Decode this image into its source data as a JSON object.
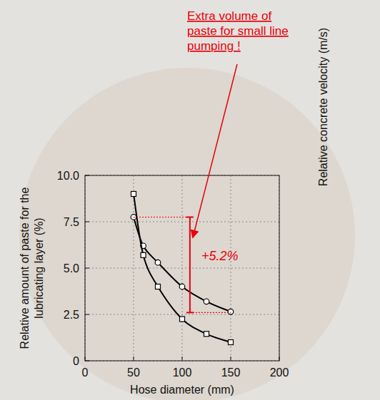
{
  "chart_data": {
    "type": "line",
    "x_label": "Hose diameter (mm)",
    "y_label_lines": [
      "Relative amount of paste for the",
      "lubricating layer (%)"
    ],
    "y2_label": "Relative concrete velocity (m/s)",
    "x": [
      50,
      60,
      75,
      100,
      125,
      150
    ],
    "series": [
      {
        "color": "#000000",
        "marker": "circle",
        "line_style": "solid",
        "values": [
          7.75,
          6.2,
          5.3,
          4.0,
          3.2,
          2.65
        ]
      },
      {
        "color": "#000000",
        "marker": "square",
        "line_style": "solid",
        "values": [
          9.0,
          5.7,
          4.0,
          2.25,
          1.45,
          1.0
        ]
      }
    ],
    "xlim": [
      0,
      200
    ],
    "xticks": [
      0,
      50,
      100,
      150,
      200
    ],
    "ylim": [
      0,
      10
    ],
    "yticks": [
      0,
      2.5,
      {
        "value": 5,
        "label": "5.0"
      },
      7.5,
      {
        "value": 10,
        "label": "10.0"
      }
    ],
    "grid": true,
    "note_lines": [
      "Extra volume of",
      "paste for small line",
      "pumping !"
    ],
    "annotations": [
      {
        "text": "+5.2%",
        "x": 108,
        "y_from": 7.75,
        "y_to": 2.6,
        "x_from": 50,
        "x_to": 150
      }
    ]
  }
}
